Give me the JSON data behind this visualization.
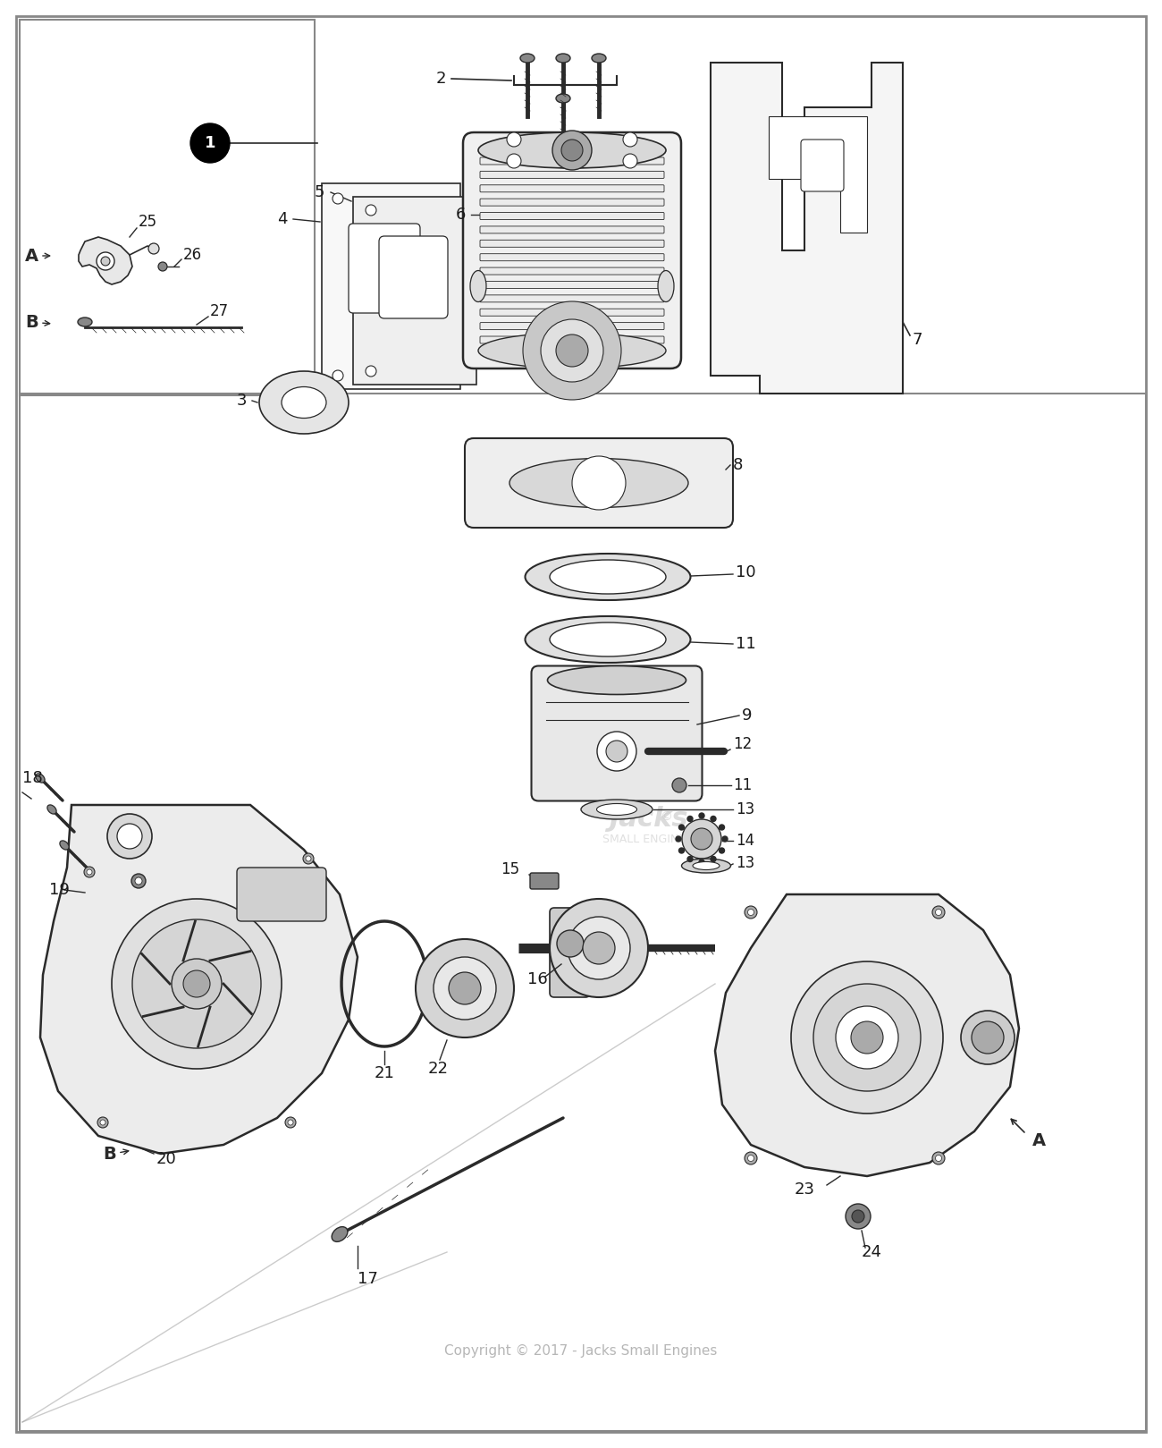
{
  "bg_color": "#ffffff",
  "line_color": "#2a2a2a",
  "label_color": "#1a1a1a",
  "watermark_color": "#aaaaaa",
  "watermark_text": "Copyright © 2017 - Jacks Small Engines",
  "logo_color": "#cccccc",
  "border_color": "#888888",
  "fig_w": 13.0,
  "fig_h": 16.19,
  "dpi": 100,
  "xlim": [
    0,
    1300
  ],
  "ylim": [
    0,
    1619
  ]
}
